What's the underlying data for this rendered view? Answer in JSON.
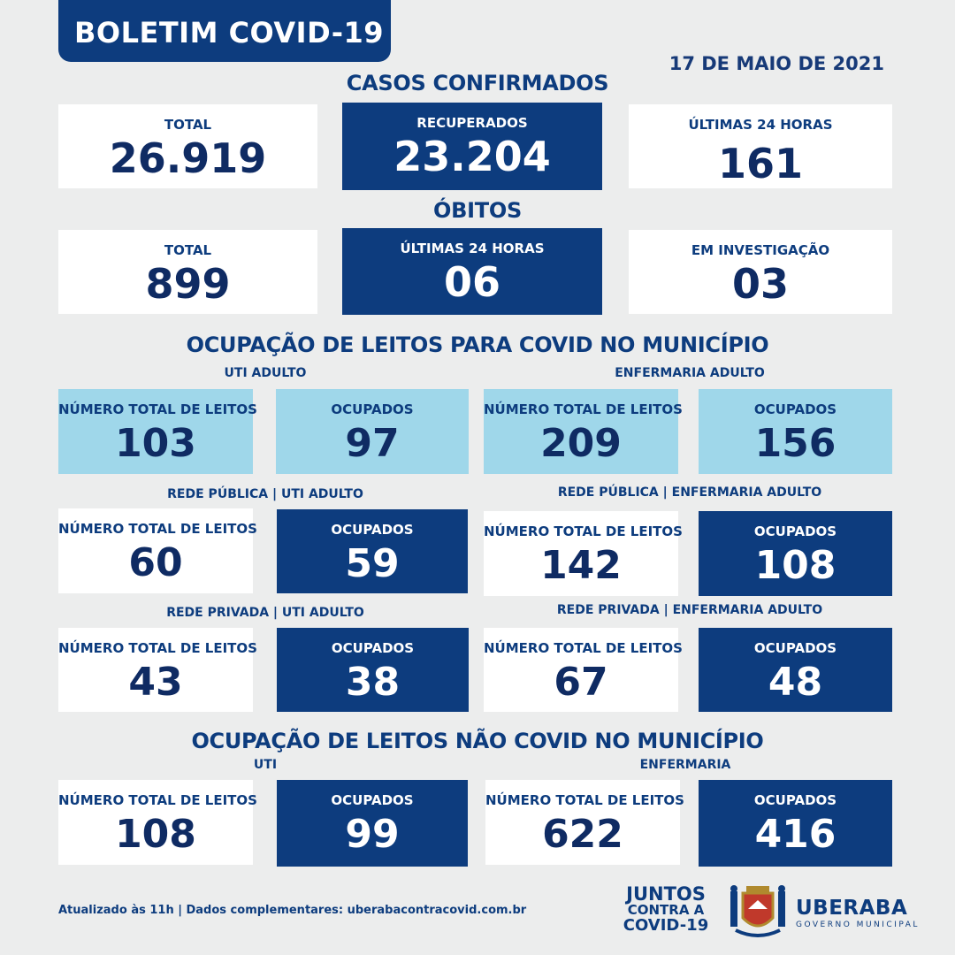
{
  "header": {
    "title": "BOLETIM COVID-19",
    "date": "17 DE MAIO DE 2021"
  },
  "casos": {
    "title": "CASOS CONFIRMADOS",
    "total_label": "TOTAL",
    "total_value": "26.919",
    "recuperados_label": "RECUPERADOS",
    "recuperados_value": "23.204",
    "ultimas_label": "ÚLTIMAS 24 HORAS",
    "ultimas_value": "161"
  },
  "obitos": {
    "title": "ÓBITOS",
    "total_label": "TOTAL",
    "total_value": "899",
    "ultimas_label": "ÚLTIMAS 24 HORAS",
    "ultimas_value": "06",
    "investigacao_label": "EM INVESTIGAÇÃO",
    "investigacao_value": "03"
  },
  "covid": {
    "title": "OCUPAÇÃO DE LEITOS PARA COVID NO MUNICÍPIO",
    "uti_label": "UTI ADULTO",
    "enf_label": "ENFERMARIA ADULTO",
    "total_leitos_label": "NÚMERO TOTAL DE LEITOS",
    "ocupados_label": "OCUPADOS",
    "uti_total": "103",
    "uti_ocupados": "97",
    "enf_total": "209",
    "enf_ocupados": "156",
    "publica_uti_label": "REDE PÚBLICA | UTI ADULTO",
    "publica_enf_label": "REDE PÚBLICA | ENFERMARIA ADULTO",
    "publica_uti_total": "60",
    "publica_uti_ocupados": "59",
    "publica_enf_total": "142",
    "publica_enf_ocupados": "108",
    "privada_uti_label": "REDE PRIVADA | UTI ADULTO",
    "privada_enf_label": "REDE PRIVADA | ENFERMARIA ADULTO",
    "privada_uti_total": "43",
    "privada_uti_ocupados": "38",
    "privada_enf_total": "67",
    "privada_enf_ocupados": "48"
  },
  "nao_covid": {
    "title": "OCUPAÇÃO DE LEITOS NÃO COVID NO MUNICÍPIO",
    "uti_label": "UTI",
    "enf_label": "ENFERMARIA",
    "uti_total": "108",
    "uti_ocupados": "99",
    "enf_total": "622",
    "enf_ocupados": "416"
  },
  "footer": {
    "text": "Atualizado às 11h | Dados complementares: uberabacontracovid.com.br",
    "juntos_1": "JUNTOS",
    "juntos_2": "CONTRA A",
    "juntos_3": "COVID-19",
    "brand": "UBERABA",
    "brand_sub": "GOVERNO MUNICIPAL"
  },
  "colors": {
    "dark_blue": "#0d3c7e",
    "light_blue": "#9fd7ea",
    "background": "#eceded"
  }
}
